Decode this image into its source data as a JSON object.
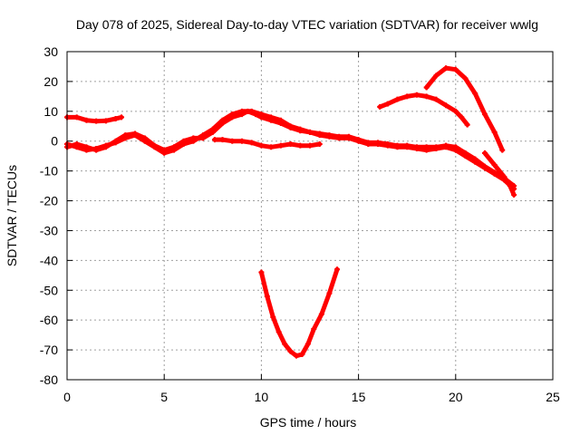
{
  "chart_data": {
    "type": "scatter",
    "title": "Day 078 of 2025, Sidereal Day-to-day VTEC variation (SDTVAR) for receiver wwlg",
    "xlabel": "GPS time / hours",
    "ylabel": "SDTVAR / TECUs",
    "xlim": [
      0,
      25
    ],
    "ylim": [
      -80,
      30
    ],
    "xticks": [
      "0",
      "5",
      "10",
      "15",
      "20",
      "25"
    ],
    "yticks": [
      "30",
      "20",
      "10",
      "0",
      "-10",
      "-20",
      "-30",
      "-40",
      "-50",
      "-60",
      "-70",
      "-80"
    ],
    "grid": true,
    "series_color": "#ff0000",
    "series": [
      {
        "name": "seg-a",
        "points": [
          [
            0,
            8
          ],
          [
            0.5,
            8
          ],
          [
            1,
            7
          ],
          [
            1.5,
            6.7
          ],
          [
            2,
            6.8
          ],
          [
            2.5,
            7.5
          ],
          [
            2.8,
            8
          ]
        ]
      },
      {
        "name": "seg-b",
        "points": [
          [
            0,
            -2
          ],
          [
            0.5,
            -1
          ],
          [
            1,
            -2
          ],
          [
            1.5,
            -3
          ],
          [
            2,
            -2
          ],
          [
            2.5,
            0
          ],
          [
            3,
            2
          ],
          [
            3.5,
            2.5
          ],
          [
            4,
            1
          ],
          [
            4.5,
            -1.5
          ],
          [
            5,
            -3
          ],
          [
            5.5,
            -2
          ],
          [
            6,
            0
          ],
          [
            6.5,
            1
          ],
          [
            7,
            1
          ],
          [
            7.5,
            3
          ],
          [
            8,
            6
          ],
          [
            8.5,
            8
          ],
          [
            9,
            9
          ],
          [
            9.3,
            10
          ],
          [
            9.7,
            9
          ],
          [
            10,
            8
          ],
          [
            10.5,
            7
          ],
          [
            11,
            6
          ],
          [
            11.5,
            4.5
          ],
          [
            12,
            3.5
          ],
          [
            12.5,
            3
          ],
          [
            13,
            2
          ],
          [
            13.5,
            1.5
          ],
          [
            14,
            1
          ],
          [
            14.5,
            1
          ],
          [
            15,
            0
          ],
          [
            15.5,
            -1
          ],
          [
            16,
            -1
          ],
          [
            16.5,
            -1.5
          ],
          [
            17,
            -2
          ],
          [
            17.5,
            -2
          ],
          [
            18,
            -2.5
          ],
          [
            18.5,
            -3
          ],
          [
            19,
            -2.5
          ],
          [
            19.5,
            -2
          ],
          [
            20,
            -3
          ],
          [
            20.5,
            -5
          ],
          [
            21,
            -7
          ],
          [
            21.5,
            -9
          ],
          [
            22,
            -11
          ],
          [
            22.5,
            -13
          ],
          [
            23,
            -16
          ]
        ]
      },
      {
        "name": "seg-c",
        "points": [
          [
            0,
            -1
          ],
          [
            0.5,
            -2
          ],
          [
            1,
            -3
          ],
          [
            1.5,
            -2.5
          ],
          [
            2,
            -1.5
          ],
          [
            2.5,
            -0.5
          ],
          [
            3,
            1
          ],
          [
            3.5,
            2
          ],
          [
            4,
            0
          ],
          [
            4.5,
            -2
          ],
          [
            5,
            -4
          ],
          [
            5.5,
            -3
          ],
          [
            6,
            -1
          ],
          [
            6.5,
            0
          ],
          [
            7,
            2
          ],
          [
            7.5,
            4
          ],
          [
            8,
            7
          ],
          [
            8.5,
            9
          ],
          [
            9,
            10
          ],
          [
            9.5,
            10
          ],
          [
            10,
            9
          ],
          [
            10.5,
            8
          ],
          [
            11,
            7
          ],
          [
            11.5,
            5
          ],
          [
            12,
            4
          ],
          [
            12.5,
            3
          ],
          [
            13,
            2.5
          ],
          [
            13.5,
            2
          ],
          [
            14,
            1.5
          ],
          [
            14.5,
            1.5
          ],
          [
            15,
            0.5
          ],
          [
            15.5,
            -0.5
          ],
          [
            16,
            -0.5
          ],
          [
            16.5,
            -1
          ],
          [
            17,
            -1.5
          ],
          [
            17.5,
            -1.5
          ],
          [
            18,
            -2
          ],
          [
            18.5,
            -2
          ],
          [
            19,
            -2
          ],
          [
            19.5,
            -1.5
          ],
          [
            20,
            -2
          ],
          [
            20.5,
            -4
          ],
          [
            21,
            -6
          ],
          [
            21.5,
            -8.5
          ],
          [
            22,
            -10.5
          ],
          [
            22.5,
            -12.5
          ],
          [
            23,
            -15
          ]
        ]
      },
      {
        "name": "seg-d",
        "points": [
          [
            7.6,
            0.5
          ],
          [
            8,
            0.5
          ],
          [
            8.5,
            0
          ],
          [
            9,
            0
          ],
          [
            9.5,
            -0.5
          ],
          [
            10,
            -1.5
          ],
          [
            10.5,
            -2
          ],
          [
            11,
            -1.5
          ],
          [
            11.5,
            -1
          ],
          [
            12,
            -1.5
          ],
          [
            12.5,
            -1.5
          ],
          [
            13,
            -1
          ]
        ]
      },
      {
        "name": "seg-e",
        "points": [
          [
            10,
            -44
          ],
          [
            10.3,
            -52
          ],
          [
            10.6,
            -59
          ],
          [
            10.9,
            -64
          ],
          [
            11.2,
            -68
          ],
          [
            11.5,
            -70.5
          ],
          [
            11.8,
            -72
          ],
          [
            12.1,
            -71.5
          ],
          [
            12.4,
            -68
          ],
          [
            12.7,
            -63
          ],
          [
            13.1,
            -58
          ],
          [
            13.5,
            -51
          ],
          [
            13.9,
            -43
          ]
        ]
      },
      {
        "name": "seg-f",
        "points": [
          [
            16.1,
            11.5
          ],
          [
            16.5,
            12.5
          ],
          [
            17,
            14
          ],
          [
            17.5,
            15
          ],
          [
            18,
            15.5
          ],
          [
            18.5,
            15
          ],
          [
            19,
            14
          ],
          [
            19.5,
            12
          ],
          [
            20,
            10
          ],
          [
            20.3,
            8
          ],
          [
            20.6,
            5.5
          ]
        ]
      },
      {
        "name": "seg-g",
        "points": [
          [
            18.5,
            18
          ],
          [
            19,
            22
          ],
          [
            19.5,
            24.5
          ],
          [
            20,
            24
          ],
          [
            20.5,
            21
          ],
          [
            21,
            16
          ],
          [
            21.5,
            9
          ],
          [
            22,
            3
          ],
          [
            22.4,
            -3
          ]
        ]
      },
      {
        "name": "seg-h",
        "points": [
          [
            21.5,
            -4
          ],
          [
            22,
            -8
          ],
          [
            22.5,
            -12
          ],
          [
            22.8,
            -15
          ],
          [
            23,
            -18
          ]
        ]
      }
    ]
  }
}
